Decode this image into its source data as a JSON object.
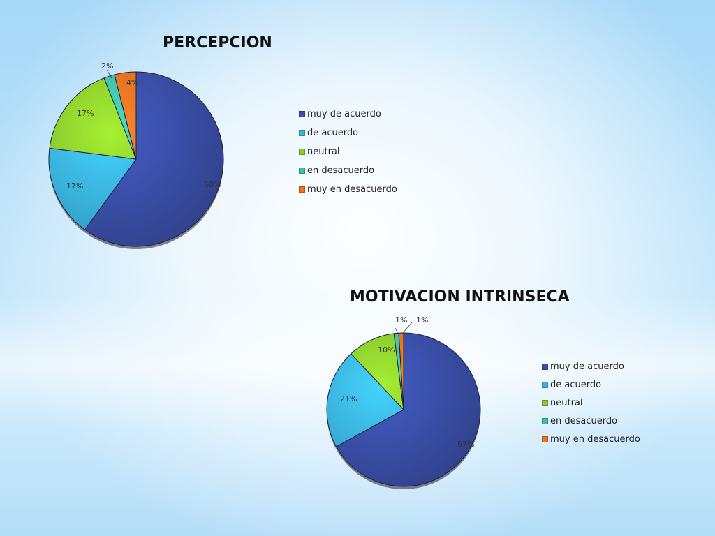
{
  "chart_data": [
    {
      "type": "pie",
      "title": "PERCEPCION",
      "categories": [
        "muy de acuerdo",
        "de acuerdo",
        "neutral",
        "en desacuerdo",
        "muy en desacuerdo"
      ],
      "values": [
        60,
        17,
        17,
        2,
        4
      ],
      "value_labels": [
        "60%",
        "17%",
        "17%",
        "2%",
        "4%"
      ],
      "legend_position": "right"
    },
    {
      "type": "pie",
      "title": "MOTIVACION INTRINSECA",
      "categories": [
        "muy de acuerdo",
        "de acuerdo",
        "neutral",
        "en desacuerdo",
        "muy en desacuerdo"
      ],
      "values": [
        67,
        21,
        10,
        1,
        1
      ],
      "value_labels": [
        "67%",
        "21%",
        "10%",
        "1%",
        "1%"
      ],
      "legend_position": "right"
    }
  ],
  "colors": [
    "#3a4fa8",
    "#3ab4e4",
    "#8ccb2c",
    "#3fbfa8",
    "#f07322"
  ]
}
